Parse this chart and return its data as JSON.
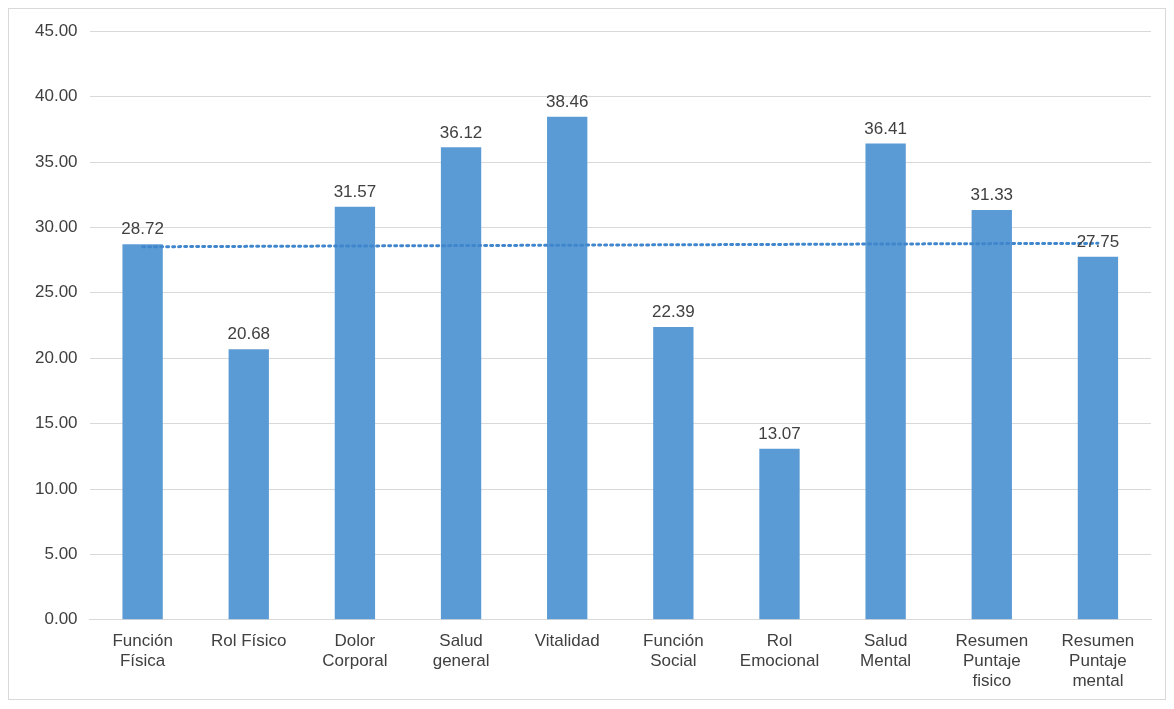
{
  "chart_data": {
    "type": "bar",
    "categories": [
      "Función Física",
      "Rol Físico",
      "Dolor Corporal",
      "Salud general",
      "Vitalidad",
      "Función Social",
      "Rol Emocional",
      "Salud Mental",
      "Resumen Puntaje fisico",
      "Resumen Puntaje mental"
    ],
    "series": [
      {
        "color": "#5b9bd5",
        "values": [
          28.72,
          20.68,
          31.57,
          36.12,
          38.46,
          22.39,
          13.07,
          36.41,
          31.33,
          27.75
        ],
        "value_labels": [
          "28.72",
          "20.68",
          "31.57",
          "36.12",
          "38.46",
          "22.39",
          "13.07",
          "36.41",
          "31.33",
          "27.75"
        ]
      },
      {
        "type": "line",
        "color": "#3f86cc",
        "line_style": "dotted",
        "marker": "none",
        "values": [
          28.52,
          28.55,
          28.58,
          28.61,
          28.64,
          28.67,
          28.7,
          28.73,
          28.76,
          28.78
        ]
      }
    ],
    "ylim": [
      0,
      45
    ],
    "yticks": [
      {
        "value": 0,
        "label": "0.00"
      },
      {
        "value": 5,
        "label": "5.00"
      },
      {
        "value": 10,
        "label": "10.00"
      },
      {
        "value": 15,
        "label": "15.00"
      },
      {
        "value": 20,
        "label": "20.00"
      },
      {
        "value": 25,
        "label": "25.00"
      },
      {
        "value": 30,
        "label": "30.00"
      },
      {
        "value": 35,
        "label": "35.00"
      },
      {
        "value": 40,
        "label": "40.00"
      },
      {
        "value": 45,
        "label": "45.00"
      }
    ],
    "grid": "y"
  }
}
